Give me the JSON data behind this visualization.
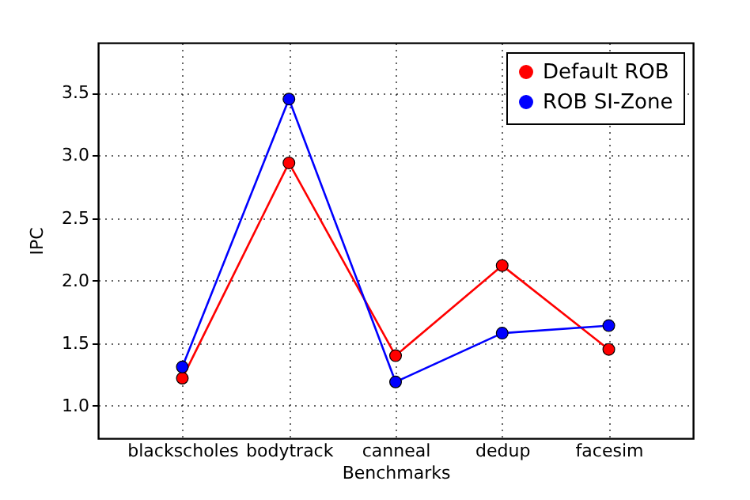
{
  "chart_data": {
    "type": "line",
    "xlabel": "Benchmarks",
    "ylabel": "IPC",
    "categories": [
      "blackscholes",
      "bodytrack",
      "canneal",
      "dedup",
      "facesim"
    ],
    "series": [
      {
        "name": "Default ROB",
        "color": "#ff0000",
        "values": [
          1.22,
          2.94,
          1.4,
          2.12,
          1.45
        ]
      },
      {
        "name": "ROB SI-Zone",
        "color": "#0000ff",
        "values": [
          1.31,
          3.45,
          1.19,
          1.58,
          1.64
        ]
      }
    ],
    "ylim": [
      0.74,
      3.9
    ],
    "yticks": [
      {
        "value": 1.0,
        "label": "1.0"
      },
      {
        "value": 1.5,
        "label": "1.5"
      },
      {
        "value": 2.0,
        "label": "2.0"
      },
      {
        "value": 2.5,
        "label": "2.5"
      },
      {
        "value": 3.0,
        "label": "3.0"
      },
      {
        "value": 3.5,
        "label": "3.5"
      }
    ],
    "grid": true,
    "legend": "top right",
    "marker": "circle",
    "line_style": "solid"
  }
}
